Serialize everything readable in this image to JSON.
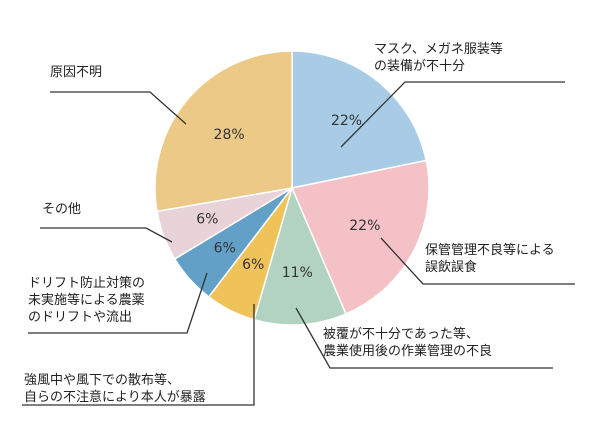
{
  "chart_data": {
    "type": "pie",
    "title": "",
    "start": "12 o'clock",
    "direction": "clockwise",
    "slices": [
      {
        "label": [
          "マスク、メガネ服装等",
          "の装備が不十分"
        ],
        "value": 22,
        "value_label": "22%",
        "color": "#a9cce6"
      },
      {
        "label": [
          "保管管理不良等による",
          "誤飲誤食"
        ],
        "value": 22,
        "value_label": "22%",
        "color": "#f4c1c6"
      },
      {
        "label": [
          "被覆が不十分であった等、",
          "農業使用後の作業管理の不良"
        ],
        "value": 11,
        "value_label": "11%",
        "color": "#b2d2c2"
      },
      {
        "label": [
          "強風中や風下での散布等、",
          "自らの不注意により本人が暴露"
        ],
        "value": 6,
        "value_label": "6%",
        "color": "#f0c25a"
      },
      {
        "label": [
          "ドリフト防止対策の",
          "未実施等による農薬",
          "のドリフトや流出"
        ],
        "value": 6,
        "value_label": "6%",
        "color": "#62a0c8"
      },
      {
        "label": [
          "その他"
        ],
        "value": 6,
        "value_label": "6%",
        "color": "#e8d3d9"
      },
      {
        "label": [
          "原因不明"
        ],
        "value": 28,
        "value_label": "28%",
        "color": "#edc987"
      }
    ]
  }
}
